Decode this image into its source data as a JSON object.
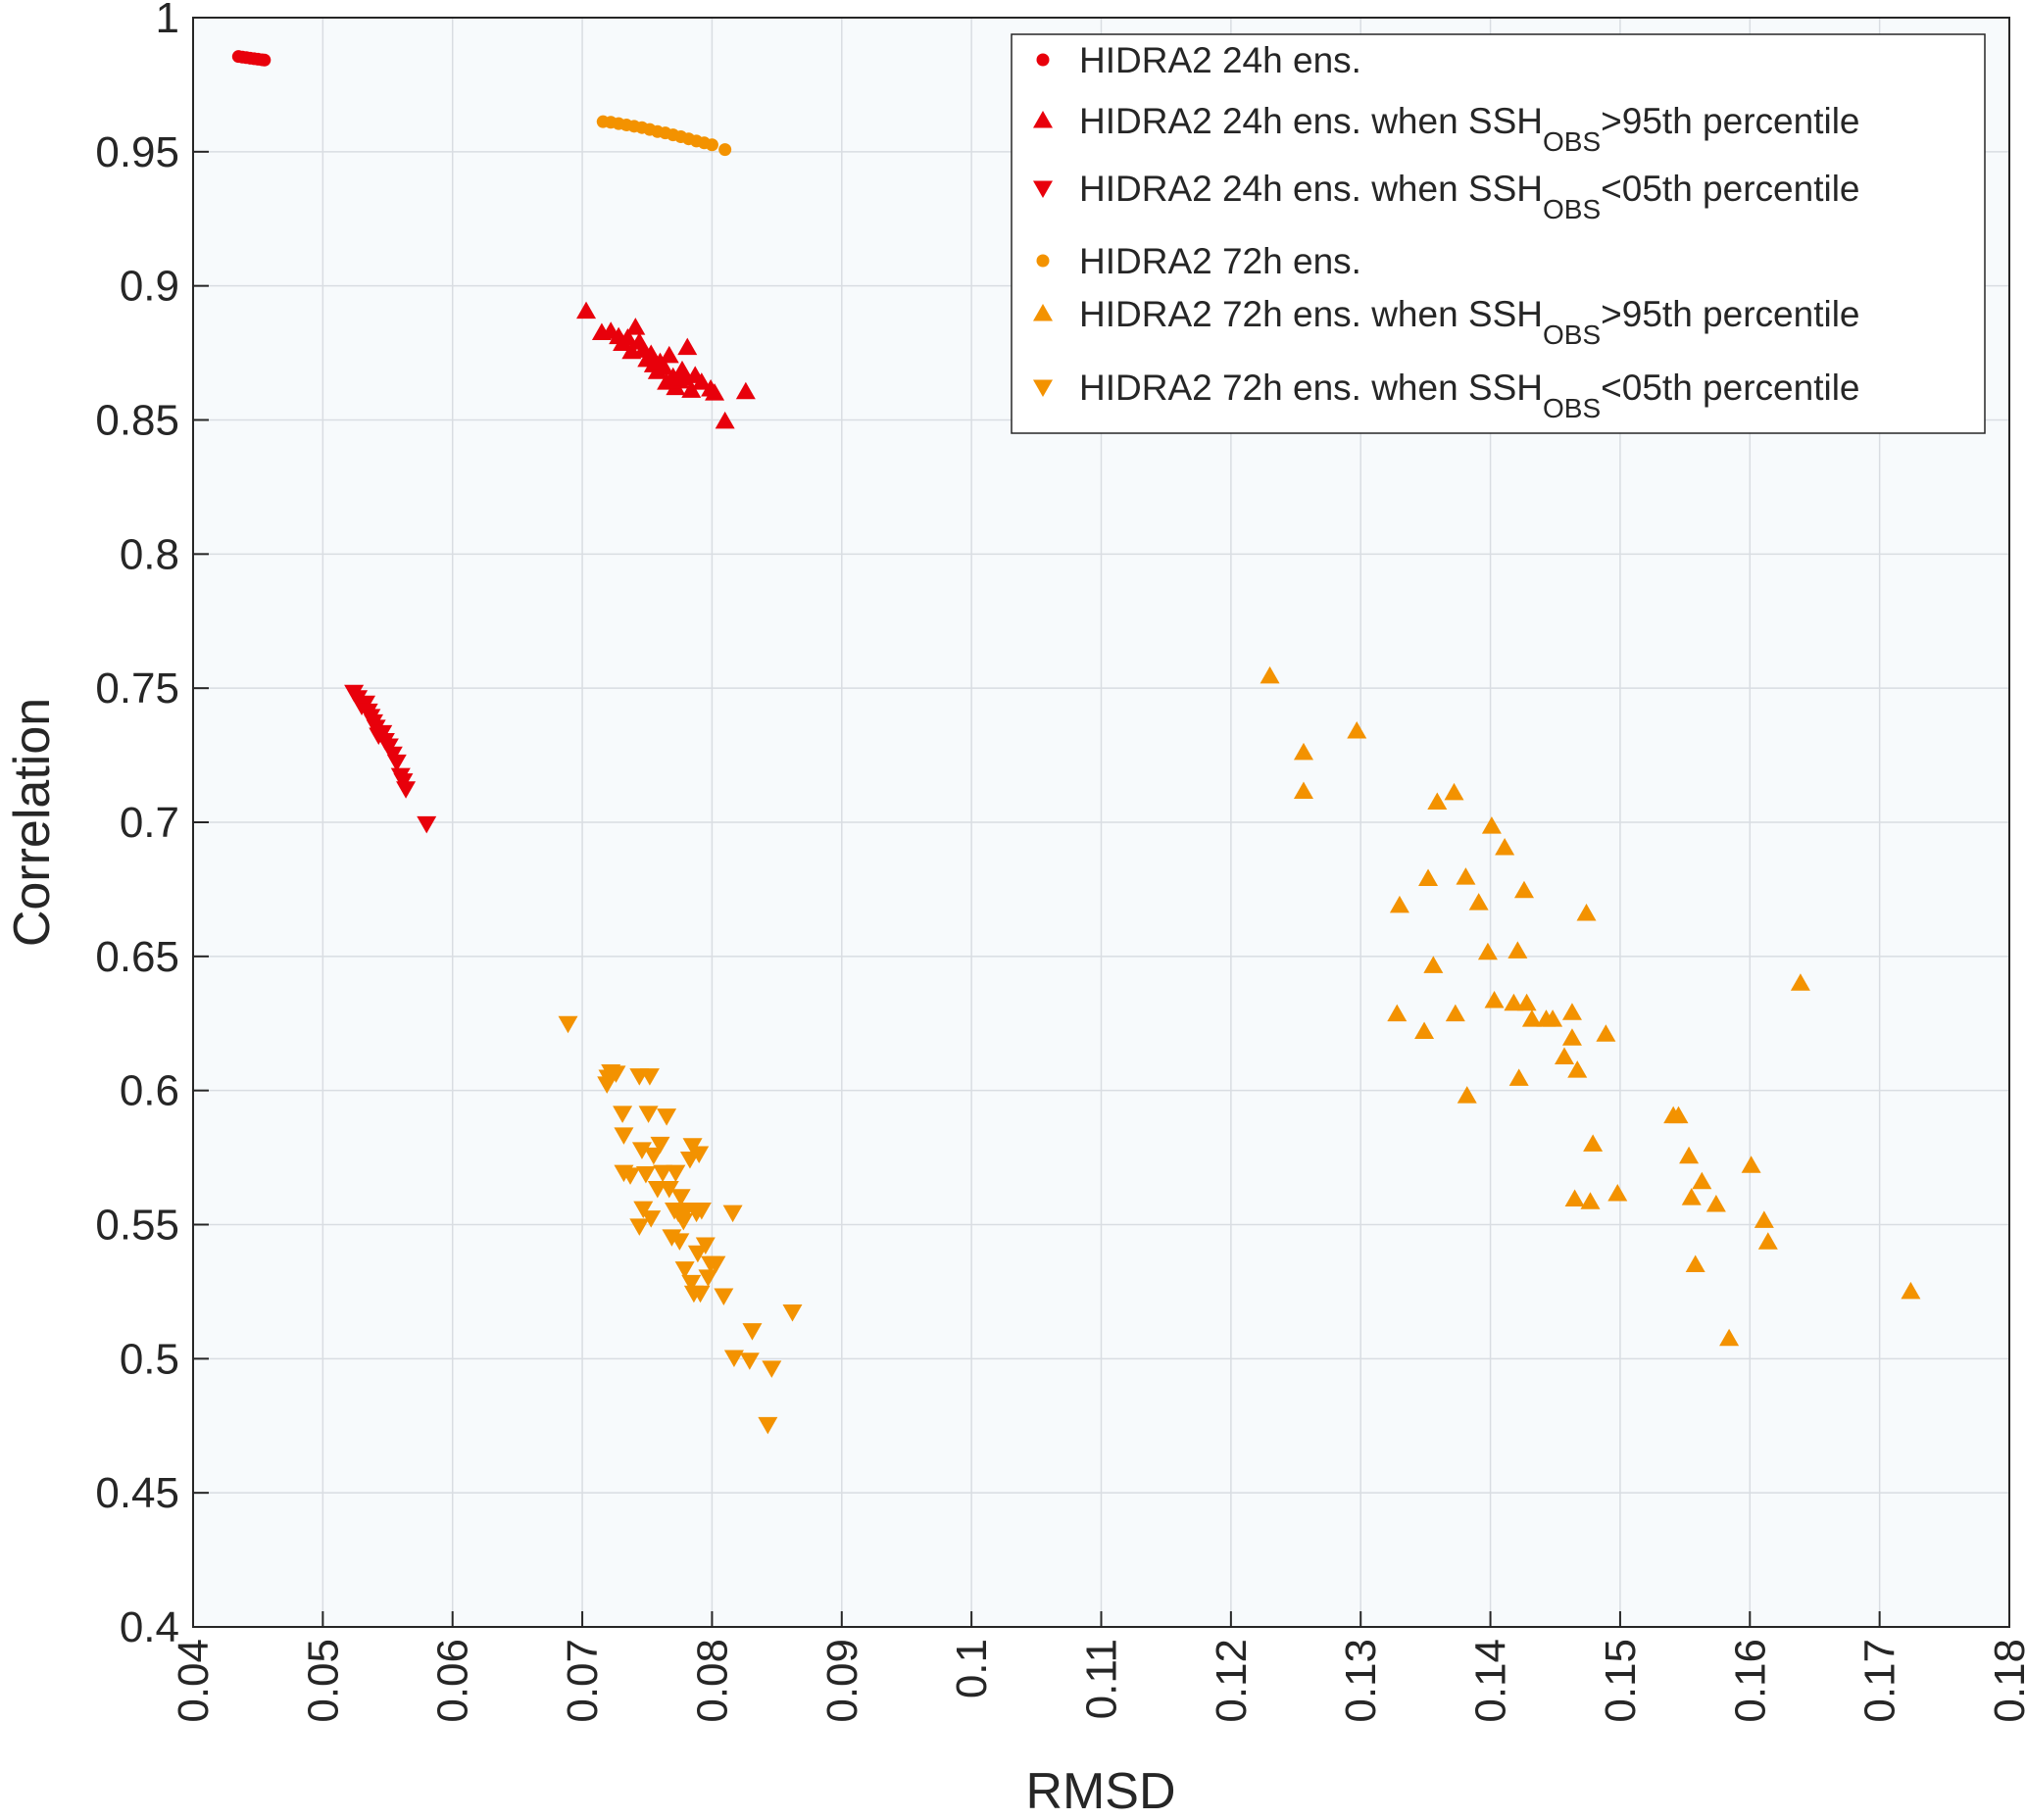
{
  "chart_data": {
    "type": "scatter",
    "xlabel": "RMSD",
    "ylabel": "Correlation",
    "xlim": [
      0.04,
      0.18
    ],
    "ylim": [
      0.4,
      1.0
    ],
    "xticks": [
      "0.04",
      "0.05",
      "0.06",
      "0.07",
      "0.08",
      "0.09",
      "0.1",
      "0.11",
      "0.12",
      "0.13",
      "0.14",
      "0.15",
      "0.16",
      "0.17",
      "0.18"
    ],
    "yticks": [
      "0.4",
      "0.45",
      "0.5",
      "0.55",
      "0.6",
      "0.65",
      "0.7",
      "0.75",
      "0.8",
      "0.85",
      "0.9",
      "0.95",
      "1"
    ],
    "grid": true,
    "legend_position": "top-right",
    "series": [
      {
        "name": "HIDRA2 24h ens.",
        "marker": "circle",
        "color": "#e8000b",
        "points": [
          [
            0.0435,
            0.9855
          ],
          [
            0.0438,
            0.9853
          ],
          [
            0.0441,
            0.9851
          ],
          [
            0.0444,
            0.9849
          ],
          [
            0.0447,
            0.9847
          ],
          [
            0.045,
            0.9845
          ],
          [
            0.0453,
            0.9843
          ],
          [
            0.0455,
            0.9842
          ]
        ]
      },
      {
        "name": "HIDRA2 24h ens. when SSH_OBS>95th percentile",
        "name_main": "HIDRA2 24h ens. when SSH",
        "name_sub": "OBS",
        "name_tail": ">95th percentile",
        "marker": "triangle-up",
        "color": "#e8000b",
        "points": [
          [
            0.0703,
            0.8905
          ],
          [
            0.0715,
            0.8825
          ],
          [
            0.0722,
            0.883
          ],
          [
            0.0728,
            0.881
          ],
          [
            0.0731,
            0.8785
          ],
          [
            0.0735,
            0.8805
          ],
          [
            0.0738,
            0.8755
          ],
          [
            0.0741,
            0.8845
          ],
          [
            0.0744,
            0.879
          ],
          [
            0.0747,
            0.876
          ],
          [
            0.075,
            0.8725
          ],
          [
            0.0753,
            0.8745
          ],
          [
            0.0755,
            0.8705
          ],
          [
            0.0758,
            0.868
          ],
          [
            0.076,
            0.8715
          ],
          [
            0.0763,
            0.8695
          ],
          [
            0.0765,
            0.864
          ],
          [
            0.0767,
            0.874
          ],
          [
            0.077,
            0.866
          ],
          [
            0.0772,
            0.862
          ],
          [
            0.0775,
            0.8645
          ],
          [
            0.0777,
            0.8685
          ],
          [
            0.0779,
            0.8655
          ],
          [
            0.0781,
            0.877
          ],
          [
            0.0784,
            0.861
          ],
          [
            0.0787,
            0.8665
          ],
          [
            0.0792,
            0.864
          ],
          [
            0.0799,
            0.8615
          ],
          [
            0.0802,
            0.86
          ],
          [
            0.081,
            0.8495
          ],
          [
            0.0826,
            0.8605
          ]
        ]
      },
      {
        "name": "HIDRA2 24h ens. when SSH_OBS<05th percentile",
        "name_main": "HIDRA2 24h ens. when SSH",
        "name_sub": "OBS",
        "name_tail": "<05th percentile",
        "marker": "triangle-down",
        "color": "#e8000b",
        "points": [
          [
            0.0524,
            0.7485
          ],
          [
            0.0527,
            0.7465
          ],
          [
            0.053,
            0.7435
          ],
          [
            0.0533,
            0.7445
          ],
          [
            0.0535,
            0.7415
          ],
          [
            0.0537,
            0.7395
          ],
          [
            0.0539,
            0.7375
          ],
          [
            0.0541,
            0.7355
          ],
          [
            0.0543,
            0.7325
          ],
          [
            0.0546,
            0.7335
          ],
          [
            0.0548,
            0.7305
          ],
          [
            0.0551,
            0.7285
          ],
          [
            0.0554,
            0.7255
          ],
          [
            0.0557,
            0.7225
          ],
          [
            0.056,
            0.7175
          ],
          [
            0.0562,
            0.7155
          ],
          [
            0.0564,
            0.7125
          ],
          [
            0.058,
            0.6995
          ]
        ]
      },
      {
        "name": "HIDRA2 72h ens.",
        "marker": "circle",
        "color": "#f39200",
        "points": [
          [
            0.0716,
            0.9612
          ],
          [
            0.0722,
            0.961
          ],
          [
            0.0728,
            0.9605
          ],
          [
            0.0734,
            0.96
          ],
          [
            0.074,
            0.9595
          ],
          [
            0.0746,
            0.959
          ],
          [
            0.0752,
            0.9583
          ],
          [
            0.0758,
            0.9575
          ],
          [
            0.0764,
            0.957
          ],
          [
            0.077,
            0.9563
          ],
          [
            0.0776,
            0.9556
          ],
          [
            0.0782,
            0.9548
          ],
          [
            0.0788,
            0.954
          ],
          [
            0.0794,
            0.9533
          ],
          [
            0.08,
            0.9526
          ],
          [
            0.081,
            0.9508
          ]
        ]
      },
      {
        "name": "HIDRA2 72h ens. when SSH_OBS>95th percentile",
        "name_main": "HIDRA2 72h ens. when SSH",
        "name_sub": "OBS",
        "name_tail": ">95th percentile",
        "marker": "triangle-up",
        "color": "#f39200",
        "points": [
          [
            0.123,
            0.7545
          ],
          [
            0.1256,
            0.726
          ],
          [
            0.1256,
            0.7115
          ],
          [
            0.1297,
            0.734
          ],
          [
            0.133,
            0.669
          ],
          [
            0.1328,
            0.6285
          ],
          [
            0.1349,
            0.622
          ],
          [
            0.1352,
            0.679
          ],
          [
            0.1356,
            0.6465
          ],
          [
            0.1359,
            0.7075
          ],
          [
            0.1372,
            0.711
          ],
          [
            0.1373,
            0.6285
          ],
          [
            0.1381,
            0.6795
          ],
          [
            0.1382,
            0.598
          ],
          [
            0.1391,
            0.67
          ],
          [
            0.1398,
            0.6515
          ],
          [
            0.1401,
            0.6985
          ],
          [
            0.1403,
            0.6335
          ],
          [
            0.1411,
            0.6905
          ],
          [
            0.1418,
            0.6325
          ],
          [
            0.1421,
            0.652
          ],
          [
            0.1422,
            0.6045
          ],
          [
            0.1426,
            0.6745
          ],
          [
            0.1428,
            0.6325
          ],
          [
            0.1432,
            0.6265
          ],
          [
            0.1443,
            0.6265
          ],
          [
            0.1448,
            0.6265
          ],
          [
            0.1457,
            0.6125
          ],
          [
            0.1463,
            0.629
          ],
          [
            0.1463,
            0.6195
          ],
          [
            0.1465,
            0.5595
          ],
          [
            0.1467,
            0.6075
          ],
          [
            0.1474,
            0.666
          ],
          [
            0.1477,
            0.5585
          ],
          [
            0.1479,
            0.58
          ],
          [
            0.1489,
            0.621
          ],
          [
            0.1498,
            0.5615
          ],
          [
            0.1541,
            0.5905
          ],
          [
            0.1545,
            0.5905
          ],
          [
            0.1553,
            0.5755
          ],
          [
            0.1555,
            0.56
          ],
          [
            0.1558,
            0.535
          ],
          [
            0.1563,
            0.566
          ],
          [
            0.1574,
            0.5575
          ],
          [
            0.1584,
            0.5075
          ],
          [
            0.1601,
            0.572
          ],
          [
            0.1611,
            0.5515
          ],
          [
            0.1614,
            0.5435
          ],
          [
            0.1639,
            0.64
          ],
          [
            0.1724,
            0.525
          ]
        ]
      },
      {
        "name": "HIDRA2 72h ens. when SSH_OBS<05th percentile",
        "name_main": "HIDRA2 72h ens. when SSH",
        "name_sub": "OBS",
        "name_tail": "<05th percentile",
        "marker": "triangle-down",
        "color": "#f39200",
        "points": [
          [
            0.0689,
            0.625
          ],
          [
            0.0719,
            0.6025
          ],
          [
            0.072,
            0.605
          ],
          [
            0.0722,
            0.607
          ],
          [
            0.0726,
            0.6065
          ],
          [
            0.0731,
            0.5915
          ],
          [
            0.0732,
            0.5695
          ],
          [
            0.0732,
            0.5835
          ],
          [
            0.0737,
            0.5685
          ],
          [
            0.0744,
            0.6055
          ],
          [
            0.0744,
            0.5495
          ],
          [
            0.0746,
            0.578
          ],
          [
            0.0747,
            0.556
          ],
          [
            0.0749,
            0.569
          ],
          [
            0.0751,
            0.5915
          ],
          [
            0.0752,
            0.6055
          ],
          [
            0.0753,
            0.5525
          ],
          [
            0.0755,
            0.576
          ],
          [
            0.0758,
            0.5635
          ],
          [
            0.076,
            0.58
          ],
          [
            0.0762,
            0.5695
          ],
          [
            0.0765,
            0.5905
          ],
          [
            0.0767,
            0.5635
          ],
          [
            0.0769,
            0.5455
          ],
          [
            0.0771,
            0.5555
          ],
          [
            0.0772,
            0.5695
          ],
          [
            0.0774,
            0.5545
          ],
          [
            0.0775,
            0.544
          ],
          [
            0.0776,
            0.5605
          ],
          [
            0.0778,
            0.5515
          ],
          [
            0.0779,
            0.5335
          ],
          [
            0.078,
            0.5555
          ],
          [
            0.0783,
            0.5745
          ],
          [
            0.0784,
            0.5285
          ],
          [
            0.0785,
            0.5795
          ],
          [
            0.0786,
            0.5245
          ],
          [
            0.0788,
            0.5545
          ],
          [
            0.0789,
            0.5395
          ],
          [
            0.079,
            0.5765
          ],
          [
            0.0791,
            0.5245
          ],
          [
            0.0792,
            0.5555
          ],
          [
            0.0795,
            0.5425
          ],
          [
            0.0797,
            0.5305
          ],
          [
            0.0799,
            0.5355
          ],
          [
            0.0803,
            0.5355
          ],
          [
            0.0809,
            0.5235
          ],
          [
            0.0816,
            0.5545
          ],
          [
            0.0817,
            0.5005
          ],
          [
            0.0829,
            0.4995
          ],
          [
            0.0831,
            0.5105
          ],
          [
            0.0843,
            0.4755
          ],
          [
            0.0846,
            0.4965
          ],
          [
            0.0862,
            0.5175
          ]
        ]
      }
    ]
  }
}
